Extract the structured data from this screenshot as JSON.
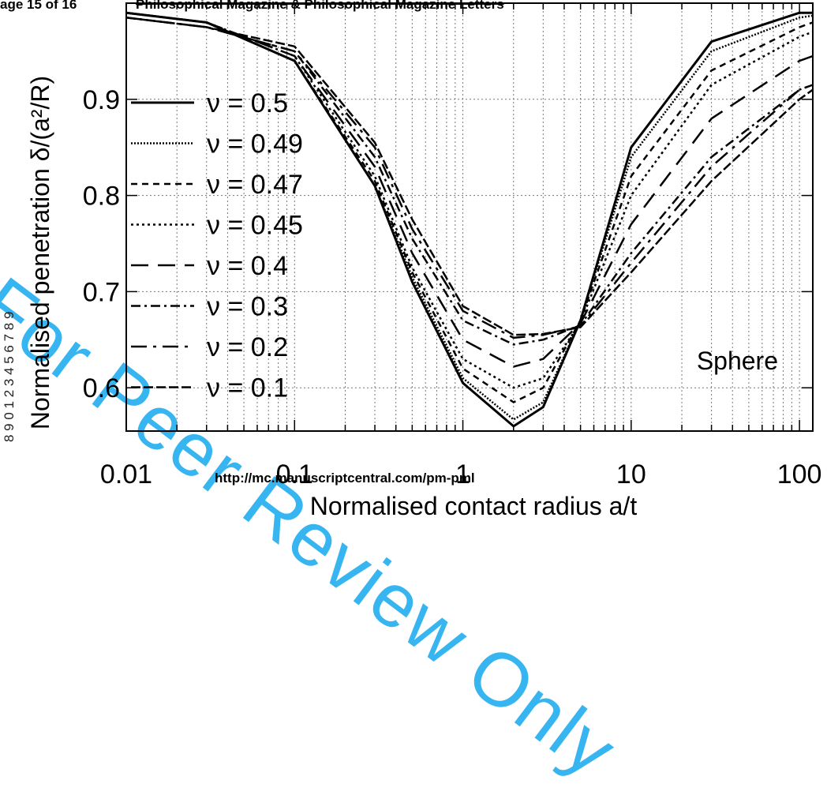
{
  "page": {
    "header_left": "age 15 of 16",
    "header_center": "Philosophical Magazine & Philosophical Magazine Letters",
    "footer_url": "http://mc.manuscriptcentral.com/pm-pml",
    "side_numbers": "8 9 0 1 2 3 4 5 6 7 8 9",
    "watermark": "For Peer Review Only",
    "watermark_color": "#22aef0"
  },
  "chart_data": {
    "type": "line",
    "xlabel": "Normalised contact radius a/t",
    "ylabel": "Normalised penetration δ/(a²/R)",
    "xscale": "log",
    "xlim": [
      0.01,
      120
    ],
    "ylim": [
      0.555,
      1.0
    ],
    "xticks": [
      0.01,
      0.1,
      1,
      10,
      100
    ],
    "xtick_labels": [
      "0.01",
      "0.1",
      "1",
      "10",
      "100"
    ],
    "yticks": [
      0.6,
      0.7,
      0.8,
      0.9
    ],
    "ytick_labels": [
      "0.6",
      "0.7",
      "0.8",
      "0.9"
    ],
    "grid": "dotted",
    "legend_position": "left",
    "annotation": "Sphere",
    "series": [
      {
        "name": "ν = 0.5",
        "dash": "solid",
        "width": 3,
        "x": [
          0.01,
          0.03,
          0.1,
          0.3,
          0.5,
          1,
          2,
          3,
          5,
          10,
          30,
          100,
          120
        ],
        "y": [
          0.99,
          0.98,
          0.94,
          0.81,
          0.71,
          0.605,
          0.56,
          0.58,
          0.67,
          0.85,
          0.96,
          0.99,
          0.99
        ]
      },
      {
        "name": "ν = 0.49",
        "dash": "dotted",
        "width": 2.5,
        "x": [
          0.01,
          0.03,
          0.1,
          0.3,
          0.5,
          1,
          2,
          3,
          5,
          10,
          30,
          100,
          120
        ],
        "y": [
          0.99,
          0.98,
          0.94,
          0.81,
          0.715,
          0.61,
          0.567,
          0.585,
          0.67,
          0.84,
          0.95,
          0.985,
          0.987
        ]
      },
      {
        "name": "ν = 0.47",
        "dash": "short-dash",
        "width": 2.5,
        "x": [
          0.01,
          0.03,
          0.1,
          0.3,
          0.5,
          1,
          2,
          3,
          5,
          10,
          30,
          100,
          120
        ],
        "y": [
          0.99,
          0.98,
          0.94,
          0.815,
          0.72,
          0.62,
          0.585,
          0.6,
          0.67,
          0.82,
          0.93,
          0.975,
          0.98
        ]
      },
      {
        "name": "ν = 0.45",
        "dash": "dot",
        "width": 2.5,
        "x": [
          0.01,
          0.03,
          0.1,
          0.3,
          0.5,
          1,
          2,
          3,
          5,
          10,
          30,
          100,
          120
        ],
        "y": [
          0.99,
          0.98,
          0.945,
          0.82,
          0.725,
          0.63,
          0.6,
          0.61,
          0.668,
          0.8,
          0.915,
          0.965,
          0.97
        ]
      },
      {
        "name": "ν = 0.4",
        "dash": "long-dash",
        "width": 2.5,
        "x": [
          0.01,
          0.03,
          0.1,
          0.3,
          0.5,
          1,
          2,
          3,
          5,
          10,
          30,
          100,
          120
        ],
        "y": [
          0.99,
          0.98,
          0.945,
          0.83,
          0.74,
          0.65,
          0.622,
          0.63,
          0.667,
          0.77,
          0.88,
          0.94,
          0.945
        ]
      },
      {
        "name": "ν = 0.3",
        "dash": "dash-dot",
        "width": 2.5,
        "x": [
          0.01,
          0.03,
          0.1,
          0.3,
          0.5,
          1,
          2,
          3,
          5,
          10,
          30,
          100,
          120
        ],
        "y": [
          0.985,
          0.975,
          0.95,
          0.84,
          0.755,
          0.67,
          0.645,
          0.65,
          0.665,
          0.74,
          0.84,
          0.91,
          0.915
        ]
      },
      {
        "name": "ν = 0.2",
        "dash": "long-dash-dot",
        "width": 2.5,
        "x": [
          0.01,
          0.03,
          0.1,
          0.3,
          0.5,
          1,
          2,
          3,
          5,
          10,
          30,
          100,
          120
        ],
        "y": [
          0.985,
          0.975,
          0.95,
          0.85,
          0.765,
          0.68,
          0.652,
          0.655,
          0.664,
          0.73,
          0.83,
          0.91,
          0.915
        ]
      },
      {
        "name": "ν = 0.1",
        "dash": "dash-dash",
        "width": 2.5,
        "x": [
          0.01,
          0.03,
          0.1,
          0.3,
          0.5,
          1,
          2,
          3,
          5,
          10,
          30,
          100,
          120
        ],
        "y": [
          0.985,
          0.975,
          0.955,
          0.855,
          0.775,
          0.685,
          0.655,
          0.656,
          0.663,
          0.72,
          0.815,
          0.9,
          0.91
        ]
      }
    ]
  }
}
